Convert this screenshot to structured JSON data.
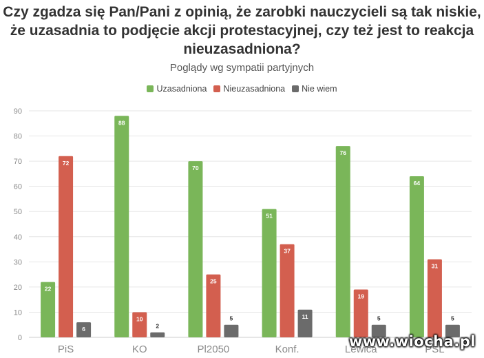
{
  "chart_data": {
    "type": "bar",
    "title_lines": [
      "Czy zgadza się Pan/Pani z opinią, że zarobki nauczycieli są tak niskie,",
      "że uzasadnia to podjęcie akcji protestacyjnej, czy też jest to reakcja",
      "nieuzasadniona?"
    ],
    "subtitle": "Poglądy wg sympatii partyjnych",
    "categories": [
      "PiS",
      "KO",
      "Pl2050",
      "Konf.",
      "Lewica",
      "PSL"
    ],
    "series": [
      {
        "name": "Uzasadniona",
        "color": "#7ab659",
        "values": [
          22,
          88,
          70,
          51,
          76,
          64
        ]
      },
      {
        "name": "Nieuzasadniona",
        "color": "#d35f4f",
        "values": [
          72,
          10,
          25,
          37,
          19,
          31
        ]
      },
      {
        "name": "Nie wiem",
        "color": "#6b6b6b",
        "values": [
          6,
          2,
          5,
          11,
          5,
          5
        ]
      }
    ],
    "ylim": [
      0,
      90
    ],
    "yticks": [
      0,
      10,
      20,
      30,
      40,
      50,
      60,
      70,
      80,
      90
    ],
    "grid": true,
    "legend_position": "top-center"
  },
  "watermark": "www.wiocha.pl"
}
